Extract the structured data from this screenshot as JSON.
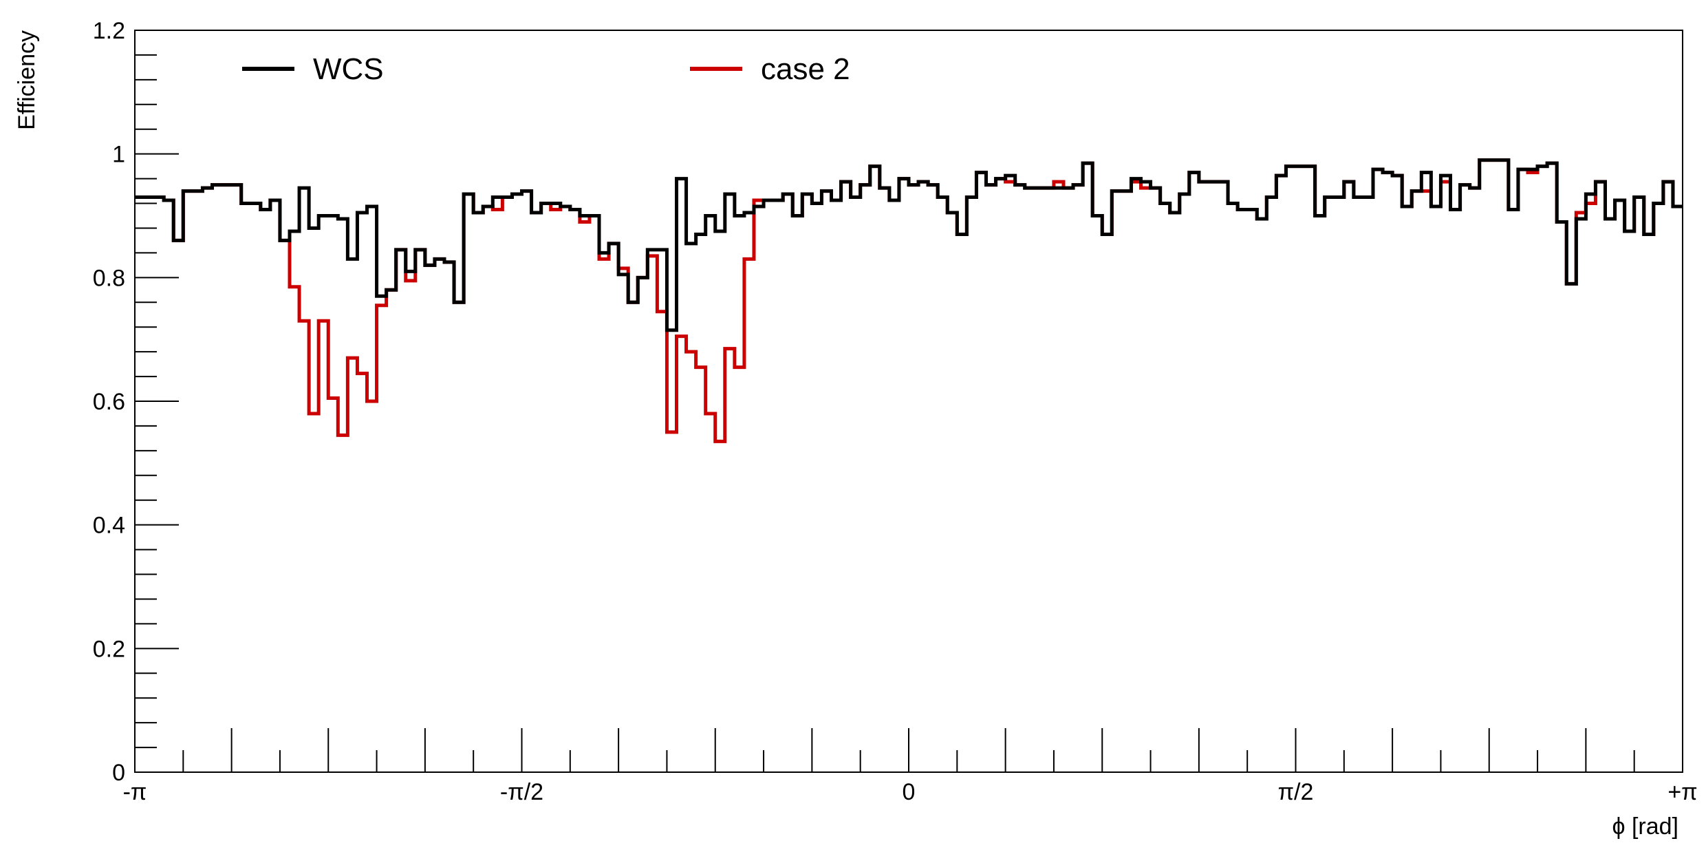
{
  "chart_data": {
    "type": "line",
    "step": true,
    "xlabel": "ϕ [rad]",
    "ylabel": "Efficiency",
    "xlim": [
      -3.14159,
      3.14159
    ],
    "ylim": [
      0,
      1.2
    ],
    "grid": false,
    "legend_position": "top",
    "x_ticks": [
      {
        "value": -3.14159,
        "label": "-π"
      },
      {
        "value": -1.5708,
        "label": "-π/2"
      },
      {
        "value": 0,
        "label": "0"
      },
      {
        "value": 1.5708,
        "label": "π/2"
      },
      {
        "value": 3.14159,
        "label": "+π"
      }
    ],
    "y_ticks": [
      {
        "value": 0,
        "label": "0"
      },
      {
        "value": 0.2,
        "label": "0.2"
      },
      {
        "value": 0.4,
        "label": "0.4"
      },
      {
        "value": 0.6,
        "label": "0.6"
      },
      {
        "value": 0.8,
        "label": "0.8"
      },
      {
        "value": 1,
        "label": "1"
      },
      {
        "value": 1.2,
        "label": "1.2"
      }
    ],
    "series": [
      {
        "name": "WCS",
        "color": "#000000",
        "values": [
          0.93,
          0.93,
          0.93,
          0.925,
          0.86,
          0.94,
          0.94,
          0.945,
          0.95,
          0.95,
          0.95,
          0.92,
          0.92,
          0.91,
          0.925,
          0.86,
          0.875,
          0.945,
          0.88,
          0.9,
          0.9,
          0.895,
          0.83,
          0.905,
          0.915,
          0.77,
          0.78,
          0.845,
          0.81,
          0.845,
          0.82,
          0.83,
          0.825,
          0.76,
          0.935,
          0.905,
          0.915,
          0.93,
          0.93,
          0.935,
          0.94,
          0.905,
          0.92,
          0.92,
          0.915,
          0.91,
          0.9,
          0.9,
          0.84,
          0.855,
          0.805,
          0.76,
          0.8,
          0.845,
          0.845,
          0.715,
          0.96,
          0.855,
          0.87,
          0.9,
          0.875,
          0.935,
          0.9,
          0.905,
          0.915,
          0.925,
          0.925,
          0.935,
          0.9,
          0.935,
          0.92,
          0.94,
          0.925,
          0.955,
          0.93,
          0.95,
          0.98,
          0.945,
          0.925,
          0.96,
          0.95,
          0.955,
          0.95,
          0.93,
          0.905,
          0.87,
          0.93,
          0.97,
          0.95,
          0.96,
          0.965,
          0.95,
          0.945,
          0.945,
          0.945,
          0.945,
          0.945,
          0.95,
          0.985,
          0.9,
          0.87,
          0.94,
          0.94,
          0.96,
          0.955,
          0.945,
          0.92,
          0.905,
          0.935,
          0.97,
          0.955,
          0.955,
          0.955,
          0.92,
          0.91,
          0.91,
          0.895,
          0.93,
          0.965,
          0.98,
          0.98,
          0.98,
          0.9,
          0.93,
          0.93,
          0.955,
          0.93,
          0.93,
          0.975,
          0.97,
          0.965,
          0.915,
          0.94,
          0.97,
          0.915,
          0.965,
          0.91,
          0.95,
          0.945,
          0.99,
          0.99,
          0.99,
          0.91,
          0.975,
          0.975,
          0.98,
          0.985,
          0.89,
          0.79,
          0.895,
          0.935,
          0.955,
          0.895,
          0.925,
          0.875,
          0.93,
          0.87,
          0.92,
          0.955,
          0.915
        ]
      },
      {
        "name": "case 2",
        "color": "#cc0000",
        "values": [
          0.93,
          0.93,
          0.93,
          0.925,
          0.86,
          0.94,
          0.94,
          0.945,
          0.95,
          0.95,
          0.95,
          0.92,
          0.92,
          0.91,
          0.925,
          0.86,
          0.785,
          0.73,
          0.58,
          0.73,
          0.605,
          0.545,
          0.67,
          0.645,
          0.6,
          0.755,
          0.78,
          0.845,
          0.795,
          0.845,
          0.82,
          0.83,
          0.825,
          0.76,
          0.935,
          0.905,
          0.915,
          0.91,
          0.93,
          0.935,
          0.94,
          0.905,
          0.92,
          0.91,
          0.915,
          0.91,
          0.89,
          0.9,
          0.83,
          0.855,
          0.815,
          0.76,
          0.8,
          0.835,
          0.745,
          0.55,
          0.705,
          0.68,
          0.655,
          0.58,
          0.535,
          0.685,
          0.655,
          0.83,
          0.925,
          0.925,
          0.925,
          0.935,
          0.9,
          0.935,
          0.92,
          0.94,
          0.925,
          0.955,
          0.93,
          0.95,
          0.98,
          0.945,
          0.925,
          0.96,
          0.95,
          0.955,
          0.95,
          0.93,
          0.905,
          0.87,
          0.93,
          0.97,
          0.95,
          0.96,
          0.955,
          0.95,
          0.945,
          0.945,
          0.945,
          0.955,
          0.945,
          0.95,
          0.985,
          0.9,
          0.87,
          0.94,
          0.94,
          0.955,
          0.945,
          0.945,
          0.92,
          0.905,
          0.935,
          0.97,
          0.955,
          0.955,
          0.955,
          0.92,
          0.91,
          0.91,
          0.895,
          0.93,
          0.965,
          0.98,
          0.98,
          0.98,
          0.9,
          0.93,
          0.93,
          0.955,
          0.93,
          0.93,
          0.975,
          0.97,
          0.965,
          0.915,
          0.94,
          0.94,
          0.915,
          0.955,
          0.91,
          0.95,
          0.945,
          0.99,
          0.99,
          0.99,
          0.91,
          0.975,
          0.97,
          0.98,
          0.985,
          0.89,
          0.79,
          0.905,
          0.92,
          0.955,
          0.895,
          0.925,
          0.875,
          0.93,
          0.87,
          0.92,
          0.955,
          0.915
        ]
      }
    ]
  }
}
